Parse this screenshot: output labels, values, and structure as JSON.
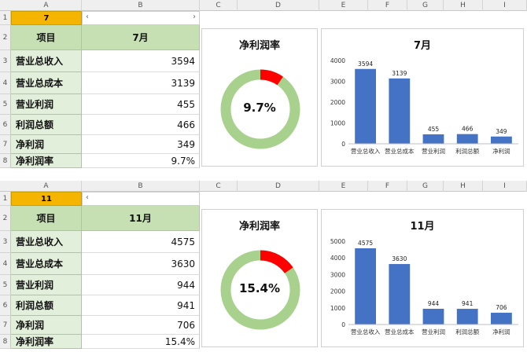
{
  "columns": [
    "A",
    "B",
    "C",
    "D",
    "E",
    "F",
    "G",
    "H",
    "I"
  ],
  "sheets": [
    {
      "namebox": "7",
      "rows": [
        "1",
        "2",
        "3",
        "4",
        "5",
        "6",
        "7",
        "8"
      ],
      "header": {
        "label": "项目",
        "value": "7月"
      },
      "items": [
        {
          "label": "营业总收入",
          "value": "3594"
        },
        {
          "label": "营业总成本",
          "value": "3139"
        },
        {
          "label": "营业利润",
          "value": "455"
        },
        {
          "label": "利润总额",
          "value": "466"
        },
        {
          "label": "净利润",
          "value": "349"
        },
        {
          "label": "净利润率",
          "value": "9.7%"
        }
      ],
      "donut": {
        "title": "净利润率",
        "label": "9.7%"
      },
      "bar": {
        "title": "7月"
      }
    },
    {
      "namebox": "11",
      "rows": [
        "1",
        "2",
        "3",
        "4",
        "5",
        "6",
        "7",
        "8"
      ],
      "header": {
        "label": "项目",
        "value": "11月"
      },
      "items": [
        {
          "label": "营业总收入",
          "value": "4575"
        },
        {
          "label": "营业总成本",
          "value": "3630"
        },
        {
          "label": "营业利润",
          "value": "944"
        },
        {
          "label": "利润总额",
          "value": "941"
        },
        {
          "label": "净利润",
          "value": "706"
        },
        {
          "label": "净利润率",
          "value": "15.4%"
        }
      ],
      "donut": {
        "title": "净利润率",
        "label": "15.4%"
      },
      "bar": {
        "title": "11月"
      }
    }
  ],
  "colors": {
    "bar": "#4472c4",
    "donut_fill": "#ff0000",
    "donut_rest": "#a9d18e",
    "namebox": "#f4b400"
  },
  "chart_data": [
    {
      "type": "pie",
      "title": "净利润率",
      "values": [
        9.7,
        90.3
      ],
      "label": "9.7%"
    },
    {
      "type": "bar",
      "title": "7月",
      "categories": [
        "营业总收入",
        "营业总成本",
        "营业利润",
        "利润总额",
        "净利润"
      ],
      "values": [
        3594,
        3139,
        455,
        466,
        349
      ],
      "ylim": [
        0,
        4000
      ],
      "yticks": [
        0,
        1000,
        2000,
        3000,
        4000
      ]
    },
    {
      "type": "pie",
      "title": "净利润率",
      "values": [
        15.4,
        84.6
      ],
      "label": "15.4%"
    },
    {
      "type": "bar",
      "title": "11月",
      "categories": [
        "营业总收入",
        "营业总成本",
        "营业利润",
        "利润总额",
        "净利润"
      ],
      "values": [
        4575,
        3630,
        944,
        941,
        706
      ],
      "ylim": [
        0,
        5000
      ],
      "yticks": [
        0,
        1000,
        2000,
        3000,
        4000,
        5000
      ]
    }
  ]
}
